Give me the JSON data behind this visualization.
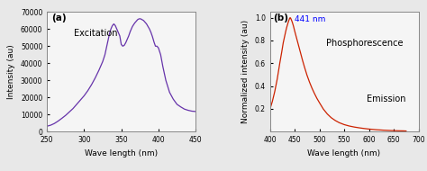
{
  "panel_a": {
    "label": "(a)",
    "annotation": "Excitation",
    "line_color": "#6633aa",
    "xlabel": "Wave length (nm)",
    "ylabel": "Intensity (au)",
    "xlim": [
      250,
      450
    ],
    "ylim": [
      0,
      70000
    ],
    "yticks": [
      0,
      10000,
      20000,
      30000,
      40000,
      50000,
      60000,
      70000
    ],
    "xticks": [
      250,
      300,
      350,
      400,
      450
    ],
    "x": [
      250,
      255,
      260,
      265,
      270,
      275,
      280,
      285,
      290,
      295,
      300,
      305,
      310,
      315,
      320,
      325,
      328,
      330,
      332,
      334,
      336,
      338,
      340,
      342,
      344,
      346,
      348,
      350,
      352,
      354,
      356,
      358,
      360,
      362,
      365,
      368,
      370,
      372,
      374,
      376,
      378,
      380,
      382,
      384,
      386,
      388,
      390,
      392,
      394,
      396,
      398,
      400,
      403,
      406,
      410,
      415,
      420,
      425,
      430,
      435,
      440,
      445,
      450
    ],
    "y": [
      3200,
      3800,
      4800,
      6200,
      7800,
      9500,
      11500,
      13500,
      16000,
      18500,
      21000,
      24000,
      27500,
      31500,
      36000,
      41000,
      45000,
      49000,
      53000,
      57000,
      60000,
      62000,
      63000,
      62000,
      60000,
      58000,
      56000,
      51000,
      50000,
      50500,
      52000,
      54000,
      56000,
      58500,
      61500,
      63500,
      64500,
      65500,
      66000,
      66000,
      65500,
      65000,
      64000,
      63000,
      61500,
      60000,
      58000,
      55500,
      52500,
      50000,
      50000,
      49000,
      45000,
      38000,
      30000,
      23000,
      19000,
      16000,
      14500,
      13200,
      12500,
      12000,
      11800
    ]
  },
  "panel_b": {
    "label": "(b)",
    "annotation_peak": "441 nm",
    "annotation_text1": "Phosphorescence",
    "annotation_text2": "Emission",
    "line_color": "#cc2200",
    "xlabel": "Wave length (nm)",
    "ylabel": "Normalized intensity (au)",
    "xlim": [
      400,
      700
    ],
    "ylim": [
      0,
      1.05
    ],
    "yticks": [
      0.2,
      0.4,
      0.6,
      0.8,
      1.0
    ],
    "xticks": [
      400,
      450,
      500,
      550,
      600,
      650,
      700
    ],
    "peak_x": 441,
    "peak_y": 1.0,
    "x": [
      400,
      405,
      410,
      415,
      420,
      424,
      427,
      430,
      432,
      434,
      436,
      438,
      440,
      441,
      442,
      444,
      446,
      448,
      450,
      454,
      458,
      462,
      466,
      470,
      475,
      480,
      485,
      490,
      495,
      500,
      508,
      516,
      524,
      532,
      540,
      550,
      560,
      570,
      580,
      590,
      600,
      615,
      630,
      645,
      660,
      670,
      675
    ],
    "y": [
      0.195,
      0.265,
      0.355,
      0.465,
      0.6,
      0.7,
      0.78,
      0.84,
      0.88,
      0.915,
      0.945,
      0.972,
      0.995,
      1.0,
      0.995,
      0.975,
      0.95,
      0.92,
      0.885,
      0.82,
      0.755,
      0.69,
      0.625,
      0.565,
      0.495,
      0.435,
      0.382,
      0.335,
      0.292,
      0.255,
      0.198,
      0.155,
      0.122,
      0.098,
      0.079,
      0.062,
      0.05,
      0.041,
      0.034,
      0.028,
      0.023,
      0.017,
      0.013,
      0.01,
      0.008,
      0.007,
      0.006
    ]
  },
  "fig_bgcolor": "#e8e8e8",
  "axes_bgcolor": "#f5f5f5"
}
